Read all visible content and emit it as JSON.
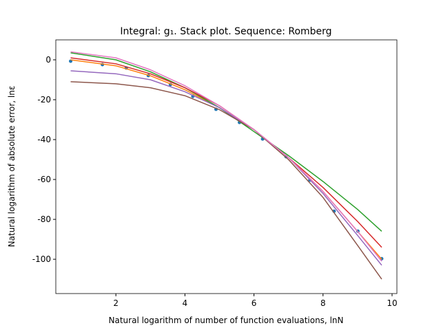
{
  "chart_data": {
    "type": "line",
    "title": "Integral: g₁. Stack plot. Sequence: Romberg",
    "x_label": "Natural logarithm of number of function evaluations, lnN",
    "y_label": "Natural logarithm of absolute error, lnε",
    "x": [
      0.69,
      2,
      3,
      4,
      5,
      6,
      7,
      8,
      9,
      9.7
    ],
    "series": [
      {
        "color": "#1f77b4",
        "marker": true,
        "x": [
          0.69,
          1.61,
          2.3,
          2.94,
          3.58,
          4.23,
          4.9,
          5.58,
          6.25,
          6.93,
          7.62,
          8.32,
          9.01,
          9.7
        ],
        "values": [
          -0.7,
          -2.4,
          -4.1,
          -7.9,
          -12.4,
          -18.3,
          -24.8,
          -31.4,
          -39.7,
          -48.6,
          -60.3,
          -75.9,
          -85.9,
          -99.7
        ]
      },
      {
        "color": "#ff7f0e",
        "values": [
          0,
          -3,
          -8,
          -15,
          -24,
          -35,
          -49,
          -66,
          -86,
          -100
        ]
      },
      {
        "color": "#2ca02c",
        "values": [
          3.5,
          0,
          -6,
          -14,
          -24,
          -36,
          -48,
          -61,
          -75,
          -86
        ]
      },
      {
        "color": "#d62728",
        "values": [
          1,
          -2,
          -7,
          -14,
          -23,
          -35,
          -49,
          -64,
          -81,
          -94
        ]
      },
      {
        "color": "#9467bd",
        "values": [
          -5.5,
          -7,
          -10,
          -16,
          -24,
          -35,
          -49,
          -67,
          -88,
          -103
        ]
      },
      {
        "color": "#8c564b",
        "values": [
          -11,
          -12,
          -14,
          -18,
          -25,
          -35,
          -50,
          -69,
          -93,
          -110
        ]
      },
      {
        "color": "#e377c2",
        "values": [
          4,
          1,
          -5,
          -13,
          -23,
          -35,
          -49,
          -66,
          -86,
          -101
        ]
      }
    ],
    "xlim": [
      0.26,
      10.14
    ],
    "ylim": [
      -117.2,
      10
    ],
    "xticks": [
      2,
      4,
      6,
      8,
      10
    ],
    "yticks": [
      -100,
      -80,
      -60,
      -40,
      -20,
      0
    ]
  }
}
